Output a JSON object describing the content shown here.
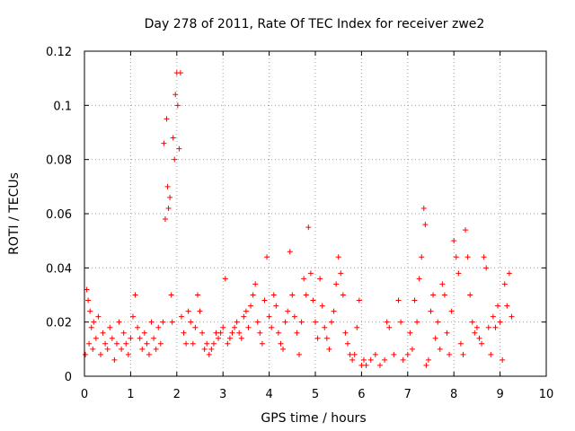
{
  "chart_data": {
    "type": "scatter",
    "title": "Day 278 of 2011, Rate Of TEC Index for receiver zwe2",
    "xlabel": "GPS time / hours",
    "ylabel": "ROTI / TECUs",
    "xlim": [
      0,
      10
    ],
    "ylim": [
      0,
      0.12
    ],
    "xticks": [
      0,
      1,
      2,
      3,
      4,
      5,
      6,
      7,
      8,
      9,
      10
    ],
    "xtick_labels": [
      "0",
      "1",
      "2",
      "3",
      "4",
      "5",
      "6",
      "7",
      "8",
      "9",
      "10"
    ],
    "yticks": [
      0,
      0.02,
      0.04,
      0.06,
      0.08,
      0.1,
      0.12
    ],
    "ytick_labels": [
      "0",
      "0.02",
      "0.04",
      "0.06",
      "0.08",
      "0.1",
      "0.12"
    ],
    "grid": true,
    "marker": "+",
    "color": "#ff0000",
    "series": [
      {
        "name": "ROTI",
        "points": [
          [
            0.02,
            0.008
          ],
          [
            0.05,
            0.032
          ],
          [
            0.08,
            0.028
          ],
          [
            0.1,
            0.012
          ],
          [
            0.12,
            0.024
          ],
          [
            0.15,
            0.018
          ],
          [
            0.18,
            0.01
          ],
          [
            0.2,
            0.02
          ],
          [
            0.25,
            0.014
          ],
          [
            0.3,
            0.022
          ],
          [
            0.35,
            0.008
          ],
          [
            0.4,
            0.016
          ],
          [
            0.45,
            0.012
          ],
          [
            0.5,
            0.01
          ],
          [
            0.55,
            0.018
          ],
          [
            0.6,
            0.014
          ],
          [
            0.65,
            0.006
          ],
          [
            0.7,
            0.012
          ],
          [
            0.75,
            0.02
          ],
          [
            0.8,
            0.01
          ],
          [
            0.85,
            0.016
          ],
          [
            0.9,
            0.012
          ],
          [
            0.95,
            0.008
          ],
          [
            1.0,
            0.014
          ],
          [
            1.05,
            0.022
          ],
          [
            1.1,
            0.03
          ],
          [
            1.15,
            0.018
          ],
          [
            1.2,
            0.014
          ],
          [
            1.25,
            0.01
          ],
          [
            1.3,
            0.016
          ],
          [
            1.35,
            0.012
          ],
          [
            1.4,
            0.008
          ],
          [
            1.45,
            0.02
          ],
          [
            1.5,
            0.014
          ],
          [
            1.55,
            0.01
          ],
          [
            1.6,
            0.018
          ],
          [
            1.65,
            0.012
          ],
          [
            1.7,
            0.02
          ],
          [
            1.72,
            0.086
          ],
          [
            1.75,
            0.058
          ],
          [
            1.78,
            0.095
          ],
          [
            1.8,
            0.07
          ],
          [
            1.82,
            0.062
          ],
          [
            1.85,
            0.066
          ],
          [
            1.88,
            0.03
          ],
          [
            1.9,
            0.02
          ],
          [
            1.92,
            0.088
          ],
          [
            1.95,
            0.08
          ],
          [
            1.97,
            0.104
          ],
          [
            2.0,
            0.112
          ],
          [
            2.02,
            0.1
          ],
          [
            2.05,
            0.084
          ],
          [
            2.08,
            0.112
          ],
          [
            2.1,
            0.022
          ],
          [
            2.15,
            0.016
          ],
          [
            2.2,
            0.012
          ],
          [
            2.25,
            0.024
          ],
          [
            2.3,
            0.02
          ],
          [
            2.35,
            0.012
          ],
          [
            2.4,
            0.018
          ],
          [
            2.45,
            0.03
          ],
          [
            2.5,
            0.024
          ],
          [
            2.55,
            0.016
          ],
          [
            2.6,
            0.01
          ],
          [
            2.65,
            0.012
          ],
          [
            2.7,
            0.008
          ],
          [
            2.75,
            0.01
          ],
          [
            2.8,
            0.012
          ],
          [
            2.85,
            0.016
          ],
          [
            2.9,
            0.014
          ],
          [
            2.95,
            0.016
          ],
          [
            3.0,
            0.018
          ],
          [
            3.05,
            0.036
          ],
          [
            3.1,
            0.012
          ],
          [
            3.15,
            0.014
          ],
          [
            3.2,
            0.016
          ],
          [
            3.25,
            0.018
          ],
          [
            3.3,
            0.02
          ],
          [
            3.35,
            0.016
          ],
          [
            3.4,
            0.014
          ],
          [
            3.45,
            0.022
          ],
          [
            3.5,
            0.024
          ],
          [
            3.55,
            0.018
          ],
          [
            3.6,
            0.026
          ],
          [
            3.65,
            0.03
          ],
          [
            3.7,
            0.034
          ],
          [
            3.75,
            0.02
          ],
          [
            3.8,
            0.016
          ],
          [
            3.85,
            0.012
          ],
          [
            3.9,
            0.028
          ],
          [
            3.95,
            0.044
          ],
          [
            4.0,
            0.022
          ],
          [
            4.05,
            0.018
          ],
          [
            4.1,
            0.03
          ],
          [
            4.15,
            0.026
          ],
          [
            4.2,
            0.016
          ],
          [
            4.25,
            0.012
          ],
          [
            4.3,
            0.01
          ],
          [
            4.35,
            0.02
          ],
          [
            4.4,
            0.024
          ],
          [
            4.45,
            0.046
          ],
          [
            4.5,
            0.03
          ],
          [
            4.55,
            0.022
          ],
          [
            4.6,
            0.016
          ],
          [
            4.65,
            0.008
          ],
          [
            4.7,
            0.02
          ],
          [
            4.75,
            0.036
          ],
          [
            4.8,
            0.03
          ],
          [
            4.85,
            0.055
          ],
          [
            4.9,
            0.038
          ],
          [
            4.95,
            0.028
          ],
          [
            5.0,
            0.02
          ],
          [
            5.05,
            0.014
          ],
          [
            5.1,
            0.036
          ],
          [
            5.15,
            0.026
          ],
          [
            5.2,
            0.018
          ],
          [
            5.25,
            0.014
          ],
          [
            5.3,
            0.01
          ],
          [
            5.35,
            0.02
          ],
          [
            5.4,
            0.024
          ],
          [
            5.45,
            0.034
          ],
          [
            5.5,
            0.044
          ],
          [
            5.55,
            0.038
          ],
          [
            5.6,
            0.03
          ],
          [
            5.65,
            0.016
          ],
          [
            5.7,
            0.012
          ],
          [
            5.75,
            0.008
          ],
          [
            5.8,
            0.006
          ],
          [
            5.85,
            0.008
          ],
          [
            5.9,
            0.018
          ],
          [
            5.95,
            0.028
          ],
          [
            6.0,
            0.004
          ],
          [
            6.05,
            0.006
          ],
          [
            6.1,
            0.004
          ],
          [
            6.2,
            0.006
          ],
          [
            6.3,
            0.008
          ],
          [
            6.4,
            0.004
          ],
          [
            6.5,
            0.006
          ],
          [
            6.55,
            0.02
          ],
          [
            6.6,
            0.018
          ],
          [
            6.7,
            0.008
          ],
          [
            6.8,
            0.028
          ],
          [
            6.85,
            0.02
          ],
          [
            6.9,
            0.006
          ],
          [
            7.0,
            0.008
          ],
          [
            7.05,
            0.016
          ],
          [
            7.1,
            0.01
          ],
          [
            7.15,
            0.028
          ],
          [
            7.2,
            0.02
          ],
          [
            7.25,
            0.036
          ],
          [
            7.3,
            0.044
          ],
          [
            7.35,
            0.062
          ],
          [
            7.38,
            0.056
          ],
          [
            7.4,
            0.004
          ],
          [
            7.45,
            0.006
          ],
          [
            7.5,
            0.024
          ],
          [
            7.55,
            0.03
          ],
          [
            7.6,
            0.014
          ],
          [
            7.65,
            0.02
          ],
          [
            7.7,
            0.01
          ],
          [
            7.75,
            0.034
          ],
          [
            7.8,
            0.03
          ],
          [
            7.85,
            0.016
          ],
          [
            7.9,
            0.008
          ],
          [
            7.95,
            0.024
          ],
          [
            8.0,
            0.05
          ],
          [
            8.05,
            0.044
          ],
          [
            8.1,
            0.038
          ],
          [
            8.15,
            0.012
          ],
          [
            8.2,
            0.008
          ],
          [
            8.25,
            0.054
          ],
          [
            8.3,
            0.044
          ],
          [
            8.35,
            0.03
          ],
          [
            8.4,
            0.02
          ],
          [
            8.45,
            0.016
          ],
          [
            8.5,
            0.018
          ],
          [
            8.55,
            0.014
          ],
          [
            8.6,
            0.012
          ],
          [
            8.65,
            0.044
          ],
          [
            8.7,
            0.04
          ],
          [
            8.75,
            0.018
          ],
          [
            8.8,
            0.008
          ],
          [
            8.85,
            0.022
          ],
          [
            8.9,
            0.018
          ],
          [
            8.95,
            0.026
          ],
          [
            9.0,
            0.02
          ],
          [
            9.05,
            0.006
          ],
          [
            9.1,
            0.034
          ],
          [
            9.15,
            0.026
          ],
          [
            9.2,
            0.038
          ],
          [
            9.25,
            0.022
          ]
        ]
      }
    ]
  }
}
